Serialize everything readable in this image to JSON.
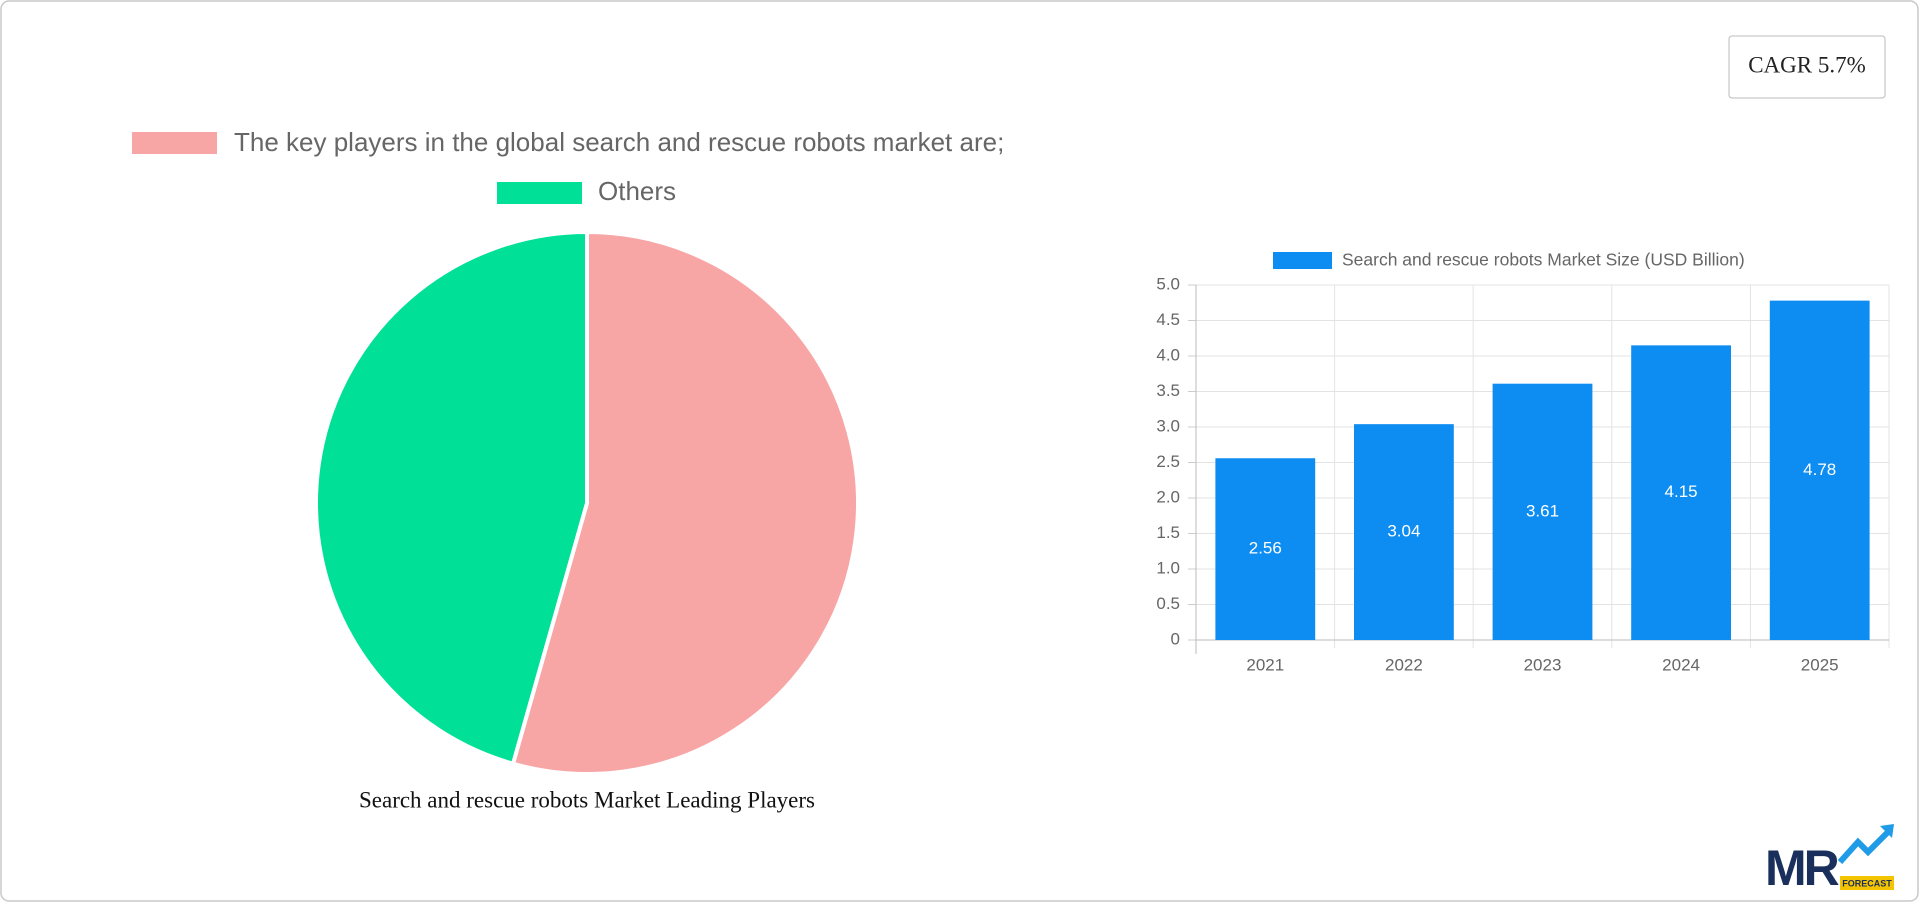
{
  "cagr": "CAGR 5.7%",
  "logo": {
    "mark": "MR",
    "tagline": "FORECAST"
  },
  "chart_data": [
    {
      "type": "pie",
      "title": "Search and rescue robots Market Leading Players",
      "categories": [
        "The key players in the global search and rescue robots market are;",
        "Others"
      ],
      "values": [
        54.4,
        45.6
      ],
      "colors": [
        "#f8a5a5",
        "#00e096"
      ]
    },
    {
      "type": "bar",
      "categories": [
        "2021",
        "2022",
        "2023",
        "2024",
        "2025"
      ],
      "series": [
        {
          "name": "Search and rescue robots Market  Size (USD Billion)",
          "color": "#0d8cf2",
          "values": [
            2.56,
            3.04,
            3.61,
            4.15,
            4.78
          ]
        }
      ],
      "ylim": [
        0,
        5
      ],
      "yticks": [
        0,
        0.5,
        {
          "value": 1,
          "label": "1.0"
        },
        1.5,
        {
          "value": 2,
          "label": "2.0"
        },
        2.5,
        {
          "value": 3,
          "label": "3.0"
        },
        3.5,
        {
          "value": 4,
          "label": "4.0"
        },
        4.5,
        {
          "value": 5,
          "label": "5.0"
        }
      ],
      "grid": true,
      "legend": "top"
    }
  ]
}
